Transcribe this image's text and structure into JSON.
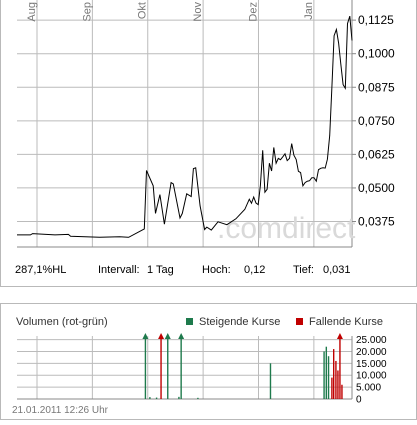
{
  "price_chart": {
    "watermark": ".comdirect",
    "stats": {
      "change": "287,1%HL",
      "interval_label": "Intervall:",
      "interval_value": "1 Tag",
      "high_label": "Hoch:",
      "high_value": "0,12",
      "low_label": "Tief:",
      "low_value": "0,031"
    }
  },
  "volume_chart": {
    "title": "Volumen (rot-grün)",
    "legend_rising": "Steigende Kurse",
    "legend_falling": "Fallende Kurse",
    "timestamp": "21.01.2011 12:26 Uhr"
  },
  "colors": {
    "rising": "#1e7a4c",
    "falling": "#c00000",
    "line": "#000000",
    "grid": "#bbbbbb"
  },
  "chart_data": [
    {
      "type": "line",
      "months": [
        "Aug",
        "Sep",
        "Okt",
        "Nov",
        "Dez",
        "Jan"
      ],
      "y_ticks": [
        "0,1125",
        "0,1000",
        "0,0875",
        "0,0750",
        "0,0625",
        "0,0500",
        "0,0375"
      ],
      "y_tick_values": [
        0.1125,
        0.1,
        0.0875,
        0.075,
        0.0625,
        0.05,
        0.0375
      ],
      "ylim": [
        0.028,
        0.12
      ],
      "x": [
        0,
        6,
        7,
        17,
        23,
        24,
        37,
        46,
        50,
        57,
        58,
        61,
        62,
        64,
        66,
        69,
        70,
        73,
        74,
        76,
        78,
        79,
        80,
        82,
        84,
        85,
        87,
        90,
        94,
        98,
        102,
        104,
        105,
        106,
        107,
        108,
        109,
        110,
        111,
        112,
        113,
        114,
        115,
        116,
        117,
        118,
        119,
        120,
        121,
        122,
        123,
        124,
        125,
        126,
        127,
        128,
        129,
        130,
        131,
        132,
        133,
        134,
        135,
        136,
        137,
        138,
        139,
        140,
        141,
        142,
        143,
        144,
        145,
        146,
        147,
        148,
        149,
        150
      ],
      "values": [
        0.0325,
        0.0325,
        0.033,
        0.0325,
        0.0327,
        0.032,
        0.0316,
        0.0318,
        0.0316,
        0.0347,
        0.0565,
        0.0508,
        0.0405,
        0.0475,
        0.0365,
        0.052,
        0.0515,
        0.0388,
        0.0405,
        0.0478,
        0.0468,
        0.0572,
        0.0575,
        0.0433,
        0.0345,
        0.0354,
        0.0343,
        0.0374,
        0.0363,
        0.0385,
        0.042,
        0.0458,
        0.0443,
        0.0466,
        0.0444,
        0.0438,
        0.051,
        0.064,
        0.0484,
        0.0495,
        0.0592,
        0.0563,
        0.0651,
        0.0592,
        0.061,
        0.0605,
        0.0616,
        0.0627,
        0.0602,
        0.061,
        0.0665,
        0.0622,
        0.0606,
        0.0562,
        0.0557,
        0.0508,
        0.052,
        0.0525,
        0.0527,
        0.0538,
        0.0538,
        0.0525,
        0.0568,
        0.0573,
        0.0575,
        0.0574,
        0.0607,
        0.0695,
        0.0876,
        0.1067,
        0.109,
        0.104,
        0.0962,
        0.0885,
        0.0871,
        0.1112,
        0.114,
        0.1049
      ],
      "grid": true
    },
    {
      "type": "bar",
      "y_ticks": [
        "25.000",
        "20.000",
        "15.000",
        "10.000",
        "5.000",
        "0"
      ],
      "y_tick_values": [
        25000,
        20000,
        15000,
        10000,
        5000,
        0
      ],
      "ylim": [
        0,
        26500
      ],
      "x_count": 150,
      "bars": [
        {
          "x": 57.5,
          "value": 27000,
          "dir": "up",
          "capped": true
        },
        {
          "x": 64.5,
          "value": 27000,
          "dir": "down",
          "capped": true
        },
        {
          "x": 67.5,
          "value": 27000,
          "dir": "up",
          "capped": true
        },
        {
          "x": 73.5,
          "value": 27000,
          "dir": "up",
          "capped": true
        },
        {
          "x": 59.5,
          "value": 800,
          "dir": "up"
        },
        {
          "x": 62.5,
          "value": 600,
          "dir": "up"
        },
        {
          "x": 72.5,
          "value": 900,
          "dir": "up"
        },
        {
          "x": 81.0,
          "value": 500,
          "dir": "up"
        },
        {
          "x": 113.5,
          "value": 15000,
          "dir": "up"
        },
        {
          "x": 137.5,
          "value": 20000,
          "dir": "up"
        },
        {
          "x": 138.5,
          "value": 22000,
          "dir": "up"
        },
        {
          "x": 139.5,
          "value": 18000,
          "dir": "up"
        },
        {
          "x": 141.0,
          "value": 9000,
          "dir": "down"
        },
        {
          "x": 141.8,
          "value": 21000,
          "dir": "down"
        },
        {
          "x": 142.8,
          "value": 16000,
          "dir": "down"
        },
        {
          "x": 143.7,
          "value": 12000,
          "dir": "down"
        },
        {
          "x": 144.6,
          "value": 27000,
          "dir": "down",
          "capped": true
        },
        {
          "x": 145.5,
          "value": 6000,
          "dir": "down"
        }
      ],
      "grid": true
    }
  ]
}
